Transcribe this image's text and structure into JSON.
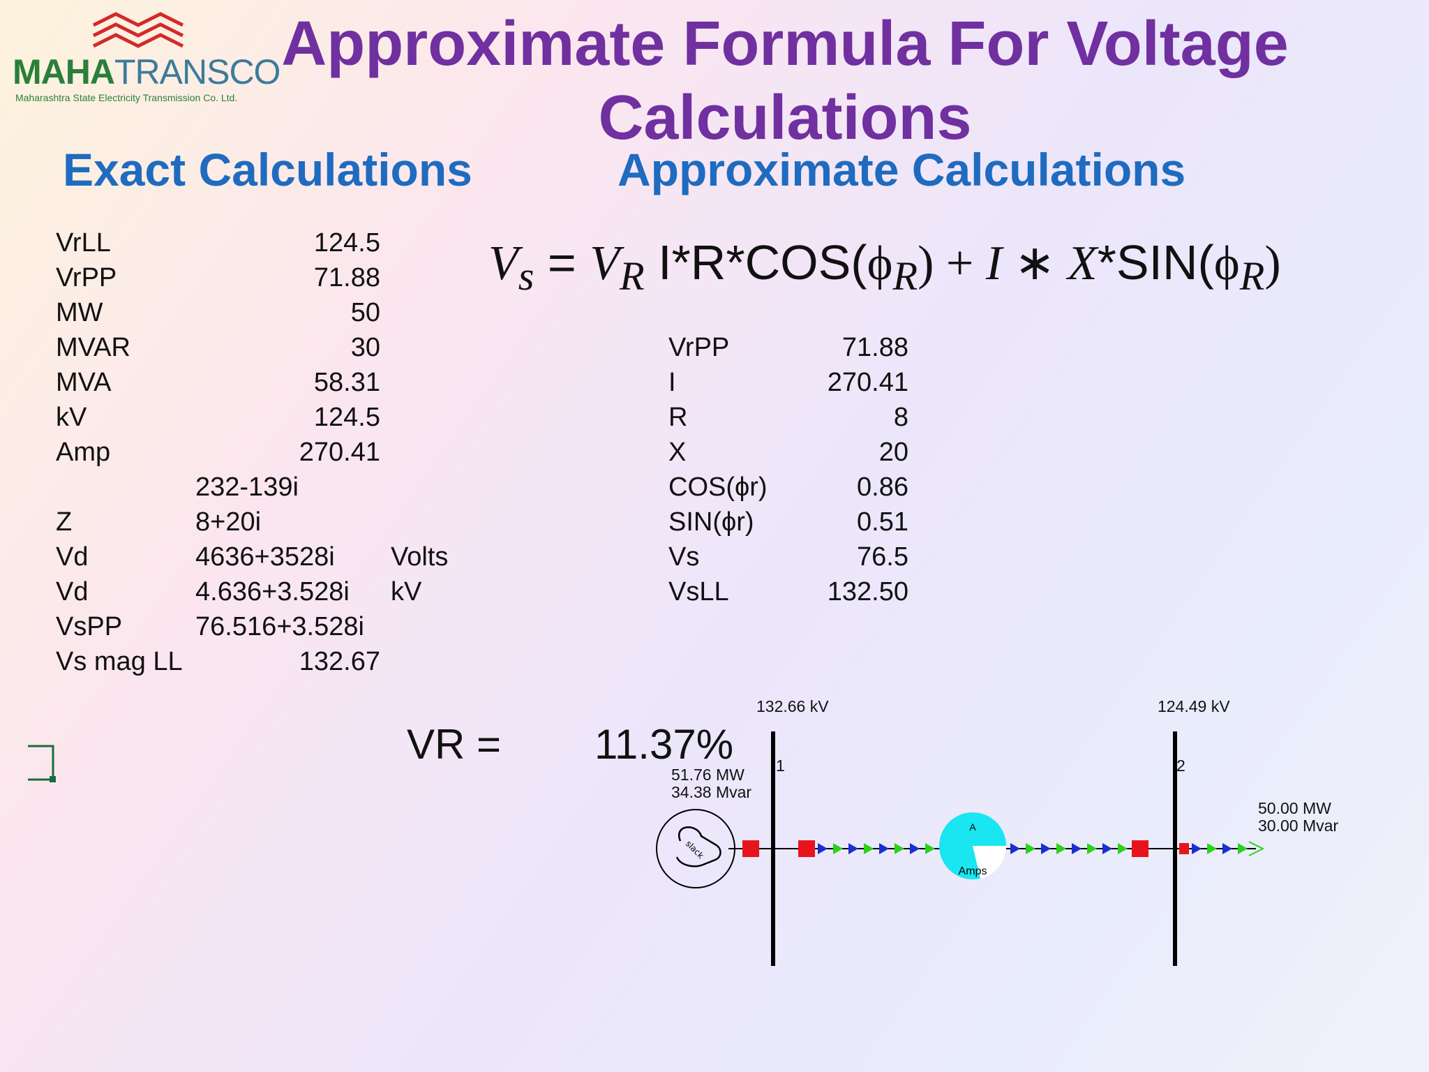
{
  "logo": {
    "name": "MAHATRANSCO",
    "tagline": "Maharashtra State Electricity Transmission Co. Ltd."
  },
  "title": {
    "line1": "Approximate Formula For Voltage",
    "line2": "Calculations"
  },
  "exact": {
    "heading": "Exact Calculations",
    "rows": [
      {
        "label": "VrLL",
        "value": "124.5",
        "unit": ""
      },
      {
        "label": "VrPP",
        "value": "71.88",
        "unit": ""
      },
      {
        "label": "MW",
        "value": "50",
        "unit": ""
      },
      {
        "label": "MVAR",
        "value": "30",
        "unit": ""
      },
      {
        "label": "MVA",
        "value": "58.31",
        "unit": ""
      },
      {
        "label": "kV",
        "value": "124.5",
        "unit": ""
      },
      {
        "label": "Amp",
        "value": "270.41",
        "unit": ""
      },
      {
        "label": "",
        "value": "232-139i",
        "unit": ""
      },
      {
        "label": "Z",
        "value": "8+20i",
        "unit": ""
      },
      {
        "label": "Vd",
        "value": "4636+3528i",
        "unit": "Volts"
      },
      {
        "label": "Vd",
        "value": "4.636+3.528i",
        "unit": "kV"
      },
      {
        "label": "VsPP",
        "value": "76.516+3.528i",
        "unit": ""
      },
      {
        "label": "Vs mag LL",
        "value": "132.67",
        "unit": ""
      }
    ]
  },
  "approx": {
    "heading": "Approximate Calculations",
    "formula": {
      "vs": "V",
      "vs_sub": "s",
      "eq": " = ",
      "vr": "V",
      "vr_sub": "R",
      "part1": " I*R*COS(",
      "phi": "ϕ",
      "phi_sub": "R",
      "part2": ") + ",
      "i": "I",
      "star": " ∗ ",
      "x": "X",
      "part3": "*SIN(",
      "phi2": "ϕ",
      "phi2_sub": "R",
      "close": ")"
    },
    "rows": [
      {
        "label": "VrPP",
        "value": "71.88"
      },
      {
        "label": "I",
        "value": "270.41"
      },
      {
        "label": "R",
        "value": "8"
      },
      {
        "label": "X",
        "value": "20"
      },
      {
        "label": "COS(ϕr)",
        "value": "0.86"
      },
      {
        "label": "SIN(ϕr)",
        "value": "0.51"
      },
      {
        "label": "Vs",
        "value": "76.5"
      },
      {
        "label": "VsLL",
        "value": "132.50"
      }
    ]
  },
  "vr": {
    "label": "VR =",
    "value": "11.37%"
  },
  "diagram": {
    "bus1_kv": "132.66 kV",
    "bus1_num": "1",
    "bus2_kv": "124.49 kV",
    "bus2_num": "2",
    "gen_mw": "51.76 MW",
    "gen_mvar": "34.38 Mvar",
    "load_mw": "50.00 MW",
    "load_mvar": "30.00 Mvar",
    "gen_label": "slack",
    "meter_top": "A",
    "meter_bottom": "Amps",
    "colors": {
      "breaker": "#e8141c",
      "meter": "#19e6f0",
      "arrow_green": "#2bd21b",
      "arrow_blue": "#1a2fd0",
      "bus": "#000000"
    }
  }
}
